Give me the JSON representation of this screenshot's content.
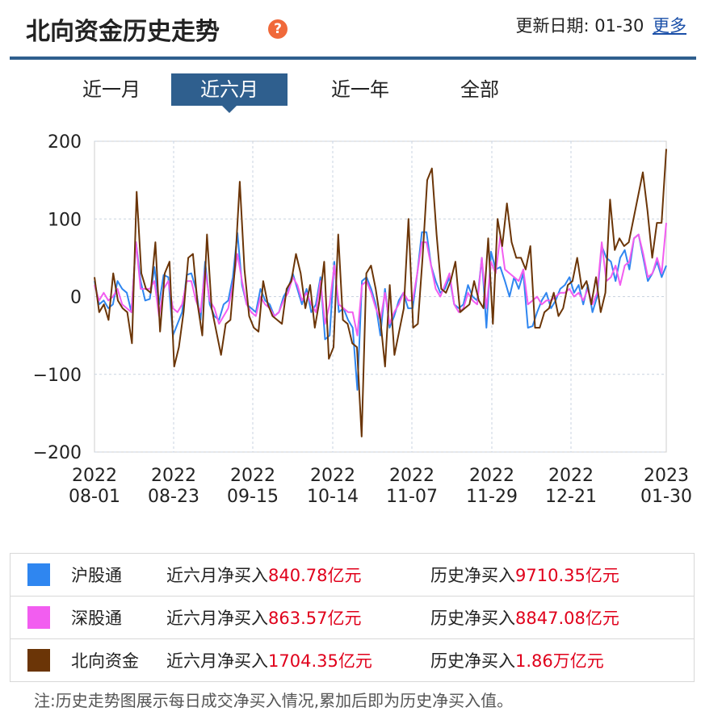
{
  "header": {
    "title": "北向资金历史走势",
    "help_symbol": "?",
    "update_label": "更新日期:",
    "update_date": "01-30",
    "more_link": "更多"
  },
  "tabs": [
    {
      "label": "近一月",
      "active": false
    },
    {
      "label": "近六月",
      "active": true
    },
    {
      "label": "近一年",
      "active": false
    },
    {
      "label": "全部",
      "active": false
    }
  ],
  "chart_data": {
    "type": "line",
    "title": "",
    "xlabel": "",
    "ylabel": "",
    "ylim": [
      -200,
      200
    ],
    "yticks": [
      200,
      100,
      0,
      -100,
      -200
    ],
    "ytick_labels": [
      "200",
      "100",
      "0",
      "−100",
      "−200"
    ],
    "xticks": [
      {
        "year": "2022",
        "date": "08-01"
      },
      {
        "year": "2022",
        "date": "08-23"
      },
      {
        "year": "2022",
        "date": "09-15"
      },
      {
        "year": "2022",
        "date": "10-14"
      },
      {
        "year": "2022",
        "date": "11-07"
      },
      {
        "year": "2022",
        "date": "11-29"
      },
      {
        "year": "2022",
        "date": "12-21"
      },
      {
        "year": "2023",
        "date": "01-30"
      }
    ],
    "grid": true,
    "series": [
      {
        "name": "沪股通",
        "color": "#2f86f0",
        "values": [
          20,
          -10,
          -5,
          -15,
          -10,
          20,
          10,
          5,
          -20,
          70,
          20,
          -5,
          -3,
          38,
          -10,
          28,
          25,
          -50,
          -35,
          -20,
          28,
          30,
          10,
          -30,
          45,
          -10,
          -25,
          -30,
          -10,
          -5,
          25,
          82,
          15,
          -10,
          -15,
          -20,
          10,
          -5,
          -10,
          -25,
          -20,
          0,
          10,
          30,
          10,
          -10,
          10,
          -20,
          -10,
          25,
          -55,
          -50,
          45,
          -20,
          -15,
          -30,
          -40,
          -120,
          20,
          25,
          10,
          -10,
          -50,
          10,
          -40,
          -25,
          -5,
          5,
          -15,
          -15,
          30,
          83,
          83,
          40,
          20,
          5,
          10,
          25,
          -10,
          -15,
          -10,
          15,
          0,
          -5,
          50,
          -40,
          58,
          35,
          38,
          20,
          0,
          25,
          10,
          30,
          -40,
          -38,
          -20,
          -5,
          5,
          -15,
          -5,
          10,
          15,
          25,
          5,
          15,
          -10,
          15,
          -20,
          0,
          65,
          50,
          45,
          20,
          50,
          60,
          35,
          75,
          80,
          50,
          20,
          30,
          45,
          25,
          40
        ],
        "_x": []
      },
      {
        "name": "深股通",
        "color": "#f25df0",
        "values": [
          15,
          -5,
          5,
          -5,
          0,
          10,
          -10,
          -15,
          -20,
          70,
          10,
          10,
          10,
          20,
          -25,
          10,
          20,
          -15,
          -20,
          -10,
          20,
          20,
          -5,
          -20,
          35,
          -5,
          -15,
          -35,
          -25,
          -15,
          15,
          55,
          20,
          -10,
          -20,
          -25,
          0,
          -10,
          -15,
          -25,
          -20,
          -5,
          5,
          25,
          15,
          -5,
          5,
          -10,
          -20,
          20,
          -35,
          -10,
          40,
          -10,
          -15,
          -20,
          -20,
          -50,
          15,
          20,
          5,
          -15,
          -30,
          5,
          -35,
          -20,
          -10,
          5,
          -5,
          -5,
          30,
          70,
          70,
          40,
          10,
          0,
          15,
          30,
          -10,
          -20,
          -15,
          5,
          -5,
          -10,
          50,
          -15,
          45,
          30,
          78,
          35,
          30,
          25,
          20,
          35,
          -10,
          -5,
          0,
          -10,
          -5,
          -5,
          0,
          5,
          5,
          10,
          0,
          5,
          -5,
          10,
          -10,
          5,
          70,
          20,
          25,
          40,
          15,
          40,
          45,
          75,
          80,
          55,
          25,
          30,
          50,
          30,
          95
        ]
      },
      {
        "name": "北向资金",
        "color": "#6b3507",
        "values": [
          25,
          -20,
          -10,
          -30,
          30,
          -5,
          -15,
          -20,
          -60,
          135,
          30,
          10,
          5,
          70,
          -45,
          30,
          45,
          -90,
          -65,
          -20,
          50,
          55,
          -10,
          -50,
          80,
          -15,
          -45,
          -75,
          -35,
          -30,
          40,
          148,
          35,
          -25,
          -40,
          -45,
          20,
          -10,
          -25,
          -30,
          -35,
          10,
          20,
          55,
          30,
          -15,
          15,
          -40,
          -5,
          45,
          -80,
          -65,
          80,
          -30,
          -35,
          -60,
          -65,
          -180,
          30,
          40,
          10,
          -30,
          -90,
          15,
          -75,
          -45,
          -15,
          100,
          -40,
          -35,
          50,
          150,
          165,
          80,
          10,
          5,
          20,
          45,
          -20,
          -15,
          -10,
          20,
          -5,
          -15,
          75,
          -35,
          100,
          65,
          120,
          70,
          50,
          50,
          35,
          65,
          -40,
          -40,
          -20,
          -15,
          5,
          -25,
          -15,
          15,
          20,
          50,
          10,
          20,
          -10,
          25,
          -20,
          5,
          125,
          60,
          75,
          65,
          70,
          100,
          130,
          160,
          110,
          50,
          95,
          95,
          190
        ]
      }
    ]
  },
  "legend": [
    {
      "name": "沪股通",
      "color": "#2f86f0",
      "recent_label": "近六月净买入",
      "recent_value": "840.78亿元",
      "hist_label": "历史净买入",
      "hist_value": "9710.35亿元"
    },
    {
      "name": "深股通",
      "color": "#f25df0",
      "recent_label": "近六月净买入",
      "recent_value": "863.57亿元",
      "hist_label": "历史净买入",
      "hist_value": "8847.08亿元"
    },
    {
      "name": "北向资金",
      "color": "#6b3507",
      "recent_label": "近六月净买入",
      "recent_value": "1704.35亿元",
      "hist_label": "历史净买入",
      "hist_value": "1.86万亿元"
    }
  ],
  "note": "注:历史走势图展示每日成交净买入情况,累加后即为历史净买入值。"
}
